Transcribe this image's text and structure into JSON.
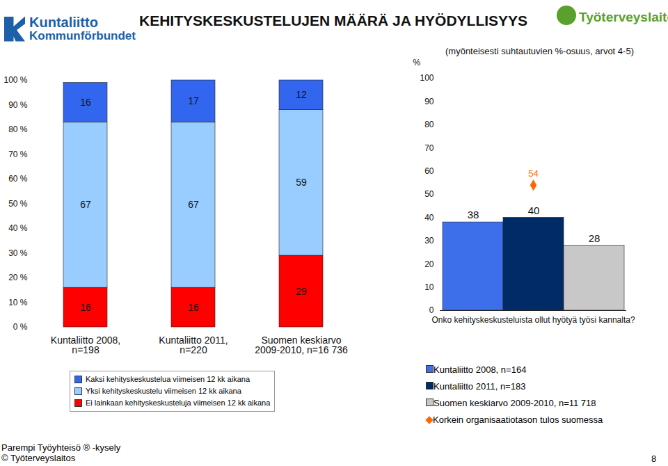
{
  "page": {
    "title": "KEHITYSKESKUSTELUJEN MÄÄRÄ JA HYÖDYLLISYYS",
    "logo_left": [
      "Kuntaliitto",
      "Kommunförbundet"
    ],
    "logo_right": "Työterveyslaitos",
    "footer": [
      "Parempi Työyhteisö ® -kysely",
      "© Työterveyslaitos"
    ],
    "page_number": "8"
  },
  "chart_data": [
    {
      "type": "bar",
      "stacked": true,
      "data_labels": true,
      "grid": false,
      "legend": "bottom",
      "categories": [
        "Kuntaliitto 2008,\nn=198",
        "Kuntaliitto 2011,\nn=220",
        "Suomen keskiarvo\n2009-2010, n=16 736"
      ],
      "series": [
        {
          "name": "Ei lainkaan kehityskeskusteluja viimeisen 12 kk aikana",
          "color": "#ff0000",
          "values": [
            16,
            16,
            29
          ]
        },
        {
          "name": "Yksi kehityskeskustelu viimeisen 12 kk aikana",
          "color": "#99ccff",
          "values": [
            67,
            67,
            59
          ]
        },
        {
          "name": "Kaksi kehityskeskustelua viimeisen 12 kk aikana",
          "color": "#3366ee",
          "values": [
            16,
            17,
            12
          ]
        }
      ],
      "ylim": [
        0,
        100
      ],
      "yticks": [
        {
          "value": 0,
          "label": "0 %"
        },
        {
          "value": 10,
          "label": "10 %"
        },
        {
          "value": 20,
          "label": "20 %"
        },
        {
          "value": 30,
          "label": "30 %"
        },
        {
          "value": 40,
          "label": "40 %"
        },
        {
          "value": 50,
          "label": "50 %"
        },
        {
          "value": 60,
          "label": "60 %"
        },
        {
          "value": 70,
          "label": "70 %"
        },
        {
          "value": 80,
          "label": "80 %"
        },
        {
          "value": 90,
          "label": "90 %"
        },
        {
          "value": 100,
          "label": "100 %"
        }
      ]
    },
    {
      "type": "bar",
      "data_labels": true,
      "grid": false,
      "legend": "bottom",
      "subtitle": "(myönteisesti suhtautuvien %-osuus, arvot 4-5)",
      "y_label": "%",
      "categories": [
        "Onko kehityskeskusteluista ollut hyötyä työsi kannalta?"
      ],
      "series": [
        {
          "name": "Kuntaliitto 2008, n=164",
          "color": "#3d6fea",
          "values": [
            38
          ]
        },
        {
          "name": "Kuntaliitto 2011, n=183",
          "color": "#002b66",
          "values": [
            40
          ]
        },
        {
          "name": "Suomen keskiarvo 2009-2010, n=11 718",
          "color": "#c8c8c8",
          "values": [
            28
          ]
        },
        {
          "name": "Korkein organisaatiotason tulos suomessa",
          "type": "scatter",
          "marker": "diamond",
          "color": "#ff6600",
          "values": [
            54
          ]
        }
      ],
      "ylim": [
        0,
        100
      ],
      "yticks": [
        0,
        10,
        20,
        30,
        40,
        50,
        60,
        70,
        80,
        90,
        100
      ]
    }
  ]
}
